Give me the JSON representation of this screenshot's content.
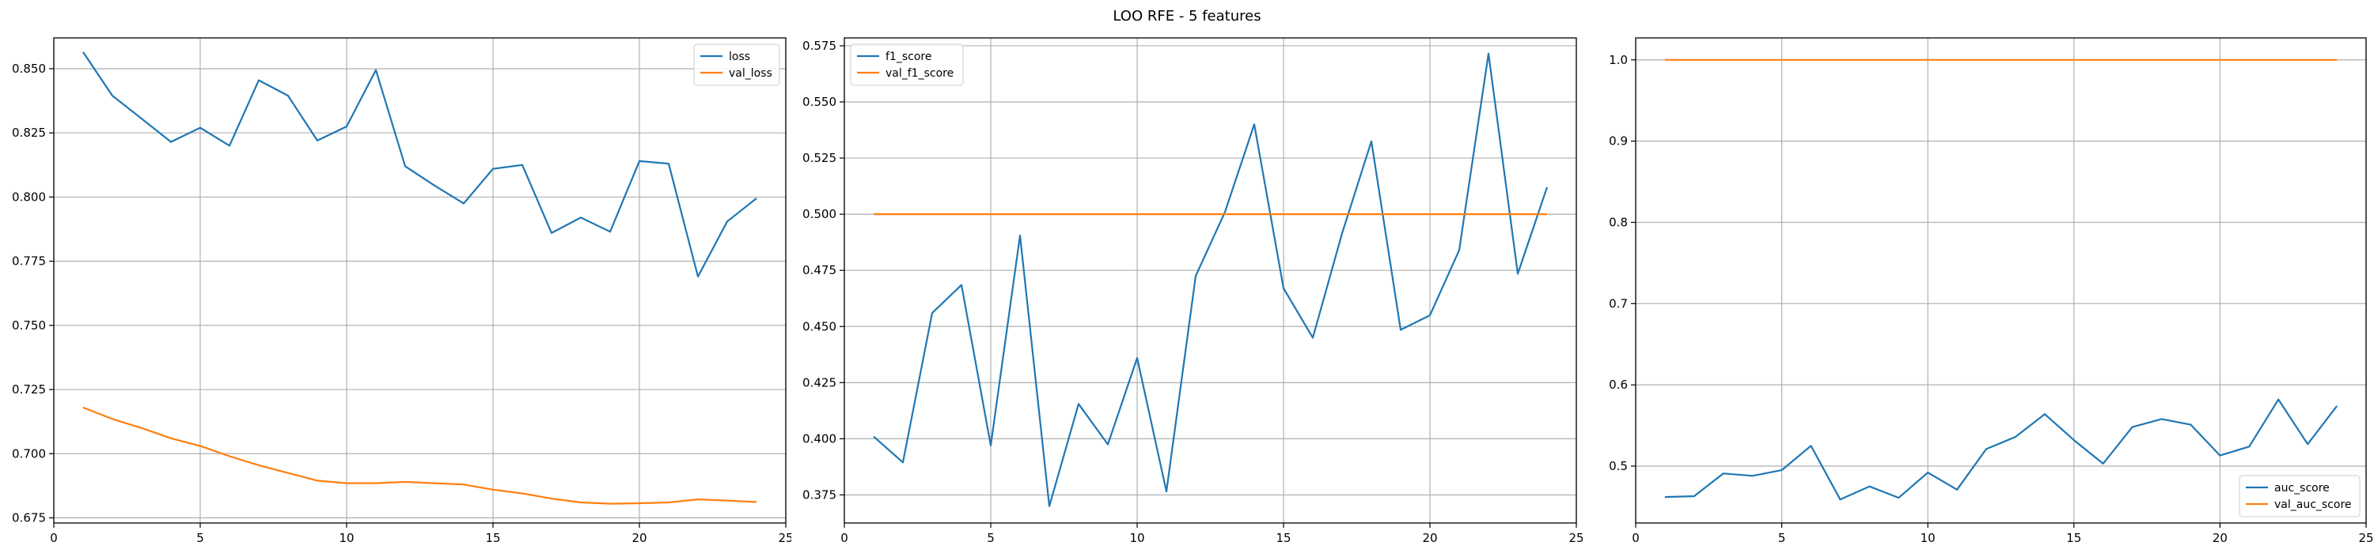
{
  "figure": {
    "title": "LOO RFE - 5 features"
  },
  "colors": {
    "series1": "#1f77b4",
    "series2": "#ff7f0e",
    "grid": "#b0b0b0",
    "axis": "#000000"
  },
  "chart_data": [
    {
      "type": "line",
      "title": "",
      "xlabel": "",
      "ylabel": "",
      "xlim": [
        0,
        25
      ],
      "ylim": [
        0.673,
        0.862
      ],
      "xticks": [
        0,
        5,
        10,
        15,
        20,
        25
      ],
      "yticks": [
        0.675,
        0.7,
        0.725,
        0.75,
        0.775,
        0.8,
        0.825,
        0.85
      ],
      "ytick_labels": [
        "0.675",
        "0.700",
        "0.725",
        "0.750",
        "0.775",
        "0.800",
        "0.825",
        "0.850"
      ],
      "grid": true,
      "legend": "top-right",
      "x": [
        1,
        2,
        3,
        4,
        5,
        6,
        7,
        8,
        9,
        10,
        11,
        12,
        13,
        14,
        15,
        16,
        17,
        18,
        19,
        20,
        21,
        22,
        23,
        24
      ],
      "series": [
        {
          "name": "loss",
          "color": "#1f77b4",
          "values": [
            0.8565,
            0.8395,
            0.8305,
            0.8215,
            0.827,
            0.82,
            0.8455,
            0.8395,
            0.822,
            0.8275,
            0.8495,
            0.812,
            0.8045,
            0.7975,
            0.811,
            0.8125,
            0.786,
            0.792,
            0.7865,
            0.814,
            0.813,
            0.769,
            0.7905,
            0.7995
          ]
        },
        {
          "name": "val_loss",
          "color": "#ff7f0e",
          "values": [
            0.718,
            0.7135,
            0.71,
            0.706,
            0.703,
            0.699,
            0.6955,
            0.6925,
            0.6895,
            0.6885,
            0.6885,
            0.689,
            0.6885,
            0.688,
            0.686,
            0.6845,
            0.6825,
            0.681,
            0.6805,
            0.6807,
            0.681,
            0.6822,
            0.6817,
            0.6812
          ]
        }
      ]
    },
    {
      "type": "line",
      "title": "",
      "xlabel": "",
      "ylabel": "",
      "xlim": [
        0,
        25
      ],
      "ylim": [
        0.3625,
        0.5785
      ],
      "xticks": [
        0,
        5,
        10,
        15,
        20,
        25
      ],
      "yticks": [
        0.375,
        0.4,
        0.425,
        0.45,
        0.475,
        0.5,
        0.525,
        0.55,
        0.575
      ],
      "ytick_labels": [
        "0.375",
        "0.400",
        "0.425",
        "0.450",
        "0.475",
        "0.500",
        "0.525",
        "0.550",
        "0.575"
      ],
      "grid": true,
      "legend": "top-left",
      "x": [
        1,
        2,
        3,
        4,
        5,
        6,
        7,
        8,
        9,
        10,
        11,
        12,
        13,
        14,
        15,
        16,
        17,
        18,
        19,
        20,
        21,
        22,
        23,
        24
      ],
      "series": [
        {
          "name": "f1_score",
          "color": "#1f77b4",
          "values": [
            0.401,
            0.3895,
            0.456,
            0.4685,
            0.397,
            0.4905,
            0.37,
            0.4155,
            0.3975,
            0.436,
            0.3765,
            0.4725,
            0.501,
            0.54,
            0.467,
            0.445,
            0.4915,
            0.5325,
            0.4485,
            0.455,
            0.484,
            0.5715,
            0.4735,
            0.512
          ]
        },
        {
          "name": "val_f1_score",
          "color": "#ff7f0e",
          "values": [
            0.5,
            0.5,
            0.5,
            0.5,
            0.5,
            0.5,
            0.5,
            0.5,
            0.5,
            0.5,
            0.5,
            0.5,
            0.5,
            0.5,
            0.5,
            0.5,
            0.5,
            0.5,
            0.5,
            0.5,
            0.5,
            0.5,
            0.5,
            0.5
          ]
        }
      ]
    },
    {
      "type": "line",
      "title": "",
      "xlabel": "",
      "ylabel": "",
      "xlim": [
        0,
        25
      ],
      "ylim": [
        0.43,
        1.027
      ],
      "xticks": [
        0,
        5,
        10,
        15,
        20,
        25
      ],
      "yticks": [
        0.5,
        0.6,
        0.7,
        0.8,
        0.9,
        1.0
      ],
      "ytick_labels": [
        "0.5",
        "0.6",
        "0.7",
        "0.8",
        "0.9",
        "1.0"
      ],
      "grid": true,
      "legend": "bottom-right",
      "x": [
        1,
        2,
        3,
        4,
        5,
        6,
        7,
        8,
        9,
        10,
        11,
        12,
        13,
        14,
        15,
        16,
        17,
        18,
        19,
        20,
        21,
        22,
        23,
        24
      ],
      "series": [
        {
          "name": "auc_score",
          "color": "#1f77b4",
          "values": [
            0.462,
            0.463,
            0.491,
            0.488,
            0.495,
            0.525,
            0.459,
            0.475,
            0.461,
            0.492,
            0.471,
            0.521,
            0.536,
            0.564,
            0.532,
            0.503,
            0.548,
            0.558,
            0.551,
            0.513,
            0.524,
            0.582,
            0.527,
            0.574
          ]
        },
        {
          "name": "val_auc_score",
          "color": "#ff7f0e",
          "values": [
            1.0,
            1.0,
            1.0,
            1.0,
            1.0,
            1.0,
            1.0,
            1.0,
            1.0,
            1.0,
            1.0,
            1.0,
            1.0,
            1.0,
            1.0,
            1.0,
            1.0,
            1.0,
            1.0,
            1.0,
            1.0,
            1.0,
            1.0,
            1.0
          ]
        }
      ]
    }
  ]
}
